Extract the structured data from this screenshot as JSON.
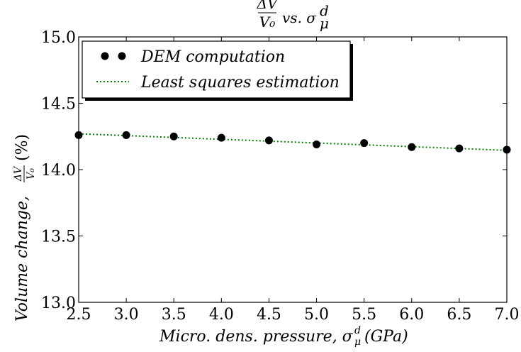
{
  "chart_data": {
    "type": "scatter",
    "title": "ΔV/V₀ vs. σᵈ_μ",
    "xlabel": "Micro. dens. pressure, σᵈ_μ (GPa)",
    "ylabel": "Volume change, ΔV/V₀ (%)",
    "xlim": [
      2.5,
      7.0
    ],
    "ylim": [
      13.0,
      15.0
    ],
    "x_ticks": [
      "2.5",
      "3.0",
      "3.5",
      "4.0",
      "4.5",
      "5.0",
      "5.5",
      "6.0",
      "6.5",
      "7.0"
    ],
    "y_ticks": [
      "13.0",
      "13.5",
      "14.0",
      "14.5",
      "15.0"
    ],
    "grid": false,
    "legend_position": "top-left",
    "series": [
      {
        "name": "DEM computation",
        "kind": "markers",
        "color": "#000000",
        "x": [
          2.5,
          3.0,
          3.5,
          4.0,
          4.5,
          5.0,
          5.5,
          6.0,
          6.5,
          7.0
        ],
        "y": [
          14.26,
          14.26,
          14.25,
          14.24,
          14.22,
          14.19,
          14.2,
          14.17,
          14.16,
          14.15
        ]
      },
      {
        "name": "Least squares estimation",
        "kind": "dotted-line",
        "color": "#008000",
        "x": [
          2.5,
          7.0
        ],
        "y": [
          14.27,
          14.145
        ]
      }
    ]
  }
}
